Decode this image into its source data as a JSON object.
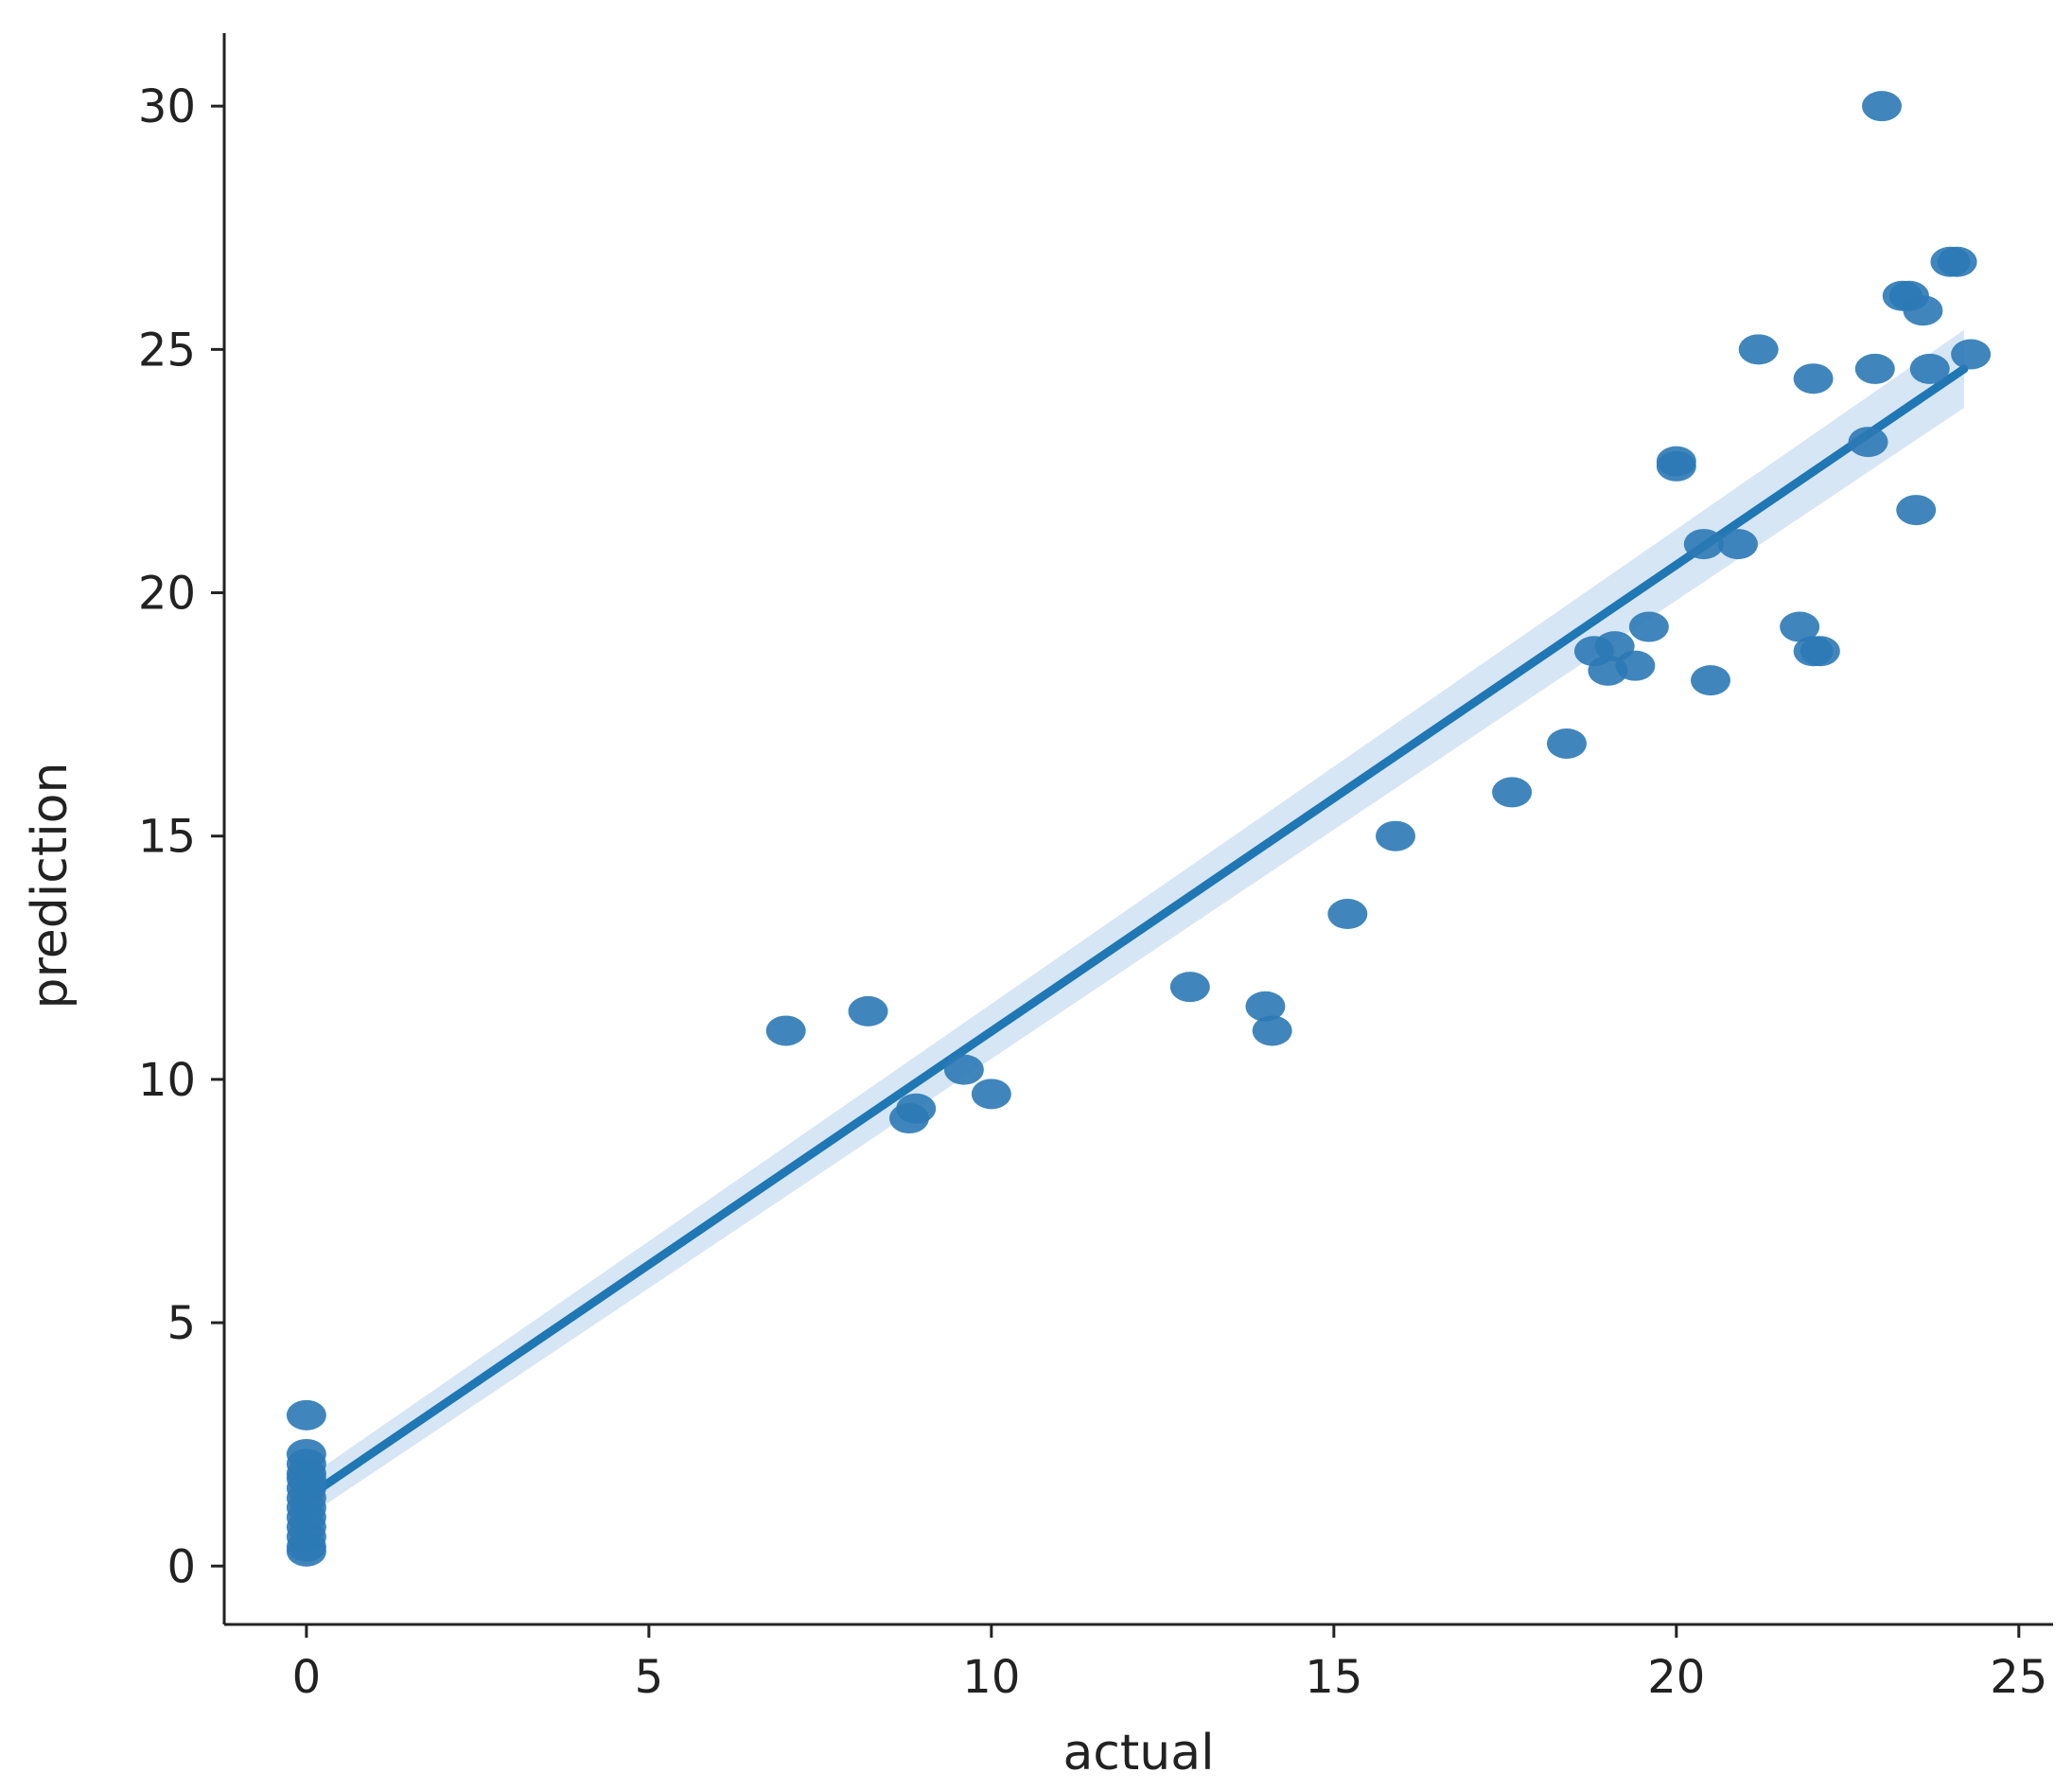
{
  "chart_data": {
    "type": "scatter",
    "title": "",
    "xlabel": "actual",
    "ylabel": "prediction",
    "xlim": [
      -1.2,
      25.5
    ],
    "ylim": [
      -1.2,
      31.5
    ],
    "xticks": [
      0,
      5,
      10,
      15,
      20,
      25
    ],
    "yticks": [
      0,
      5,
      10,
      15,
      20,
      25,
      30
    ],
    "grid": false,
    "legend": "none",
    "point_color": "#2b79b5",
    "line_color": "#1f77b4",
    "band_color": "#c6dbef",
    "points": [
      {
        "x": 0,
        "y": 3.1
      },
      {
        "x": 0,
        "y": 2.3
      },
      {
        "x": 0,
        "y": 2.1
      },
      {
        "x": 0,
        "y": 1.9
      },
      {
        "x": 0,
        "y": 1.8
      },
      {
        "x": 0,
        "y": 1.6
      },
      {
        "x": 0,
        "y": 1.4
      },
      {
        "x": 0,
        "y": 1.2
      },
      {
        "x": 0,
        "y": 1.0
      },
      {
        "x": 0,
        "y": 0.8
      },
      {
        "x": 0,
        "y": 0.6
      },
      {
        "x": 0,
        "y": 0.4
      },
      {
        "x": 0,
        "y": 0.3
      },
      {
        "x": 7.0,
        "y": 11.0
      },
      {
        "x": 8.2,
        "y": 11.4
      },
      {
        "x": 8.9,
        "y": 9.4
      },
      {
        "x": 8.8,
        "y": 9.2
      },
      {
        "x": 9.6,
        "y": 10.2
      },
      {
        "x": 10.0,
        "y": 9.7
      },
      {
        "x": 12.9,
        "y": 11.9
      },
      {
        "x": 14.0,
        "y": 11.5
      },
      {
        "x": 14.1,
        "y": 11.0
      },
      {
        "x": 15.2,
        "y": 13.4
      },
      {
        "x": 15.9,
        "y": 15.0
      },
      {
        "x": 17.6,
        "y": 15.9
      },
      {
        "x": 18.4,
        "y": 16.9
      },
      {
        "x": 18.8,
        "y": 18.8
      },
      {
        "x": 19.0,
        "y": 18.4
      },
      {
        "x": 19.1,
        "y": 18.9
      },
      {
        "x": 19.4,
        "y": 18.5
      },
      {
        "x": 19.6,
        "y": 19.3
      },
      {
        "x": 20.0,
        "y": 22.7
      },
      {
        "x": 20.0,
        "y": 22.6
      },
      {
        "x": 20.4,
        "y": 21.0
      },
      {
        "x": 20.9,
        "y": 21.0
      },
      {
        "x": 20.5,
        "y": 18.2
      },
      {
        "x": 21.2,
        "y": 25.0
      },
      {
        "x": 21.8,
        "y": 19.3
      },
      {
        "x": 22.0,
        "y": 18.8
      },
      {
        "x": 22.1,
        "y": 18.8
      },
      {
        "x": 22.0,
        "y": 24.4
      },
      {
        "x": 22.8,
        "y": 23.1
      },
      {
        "x": 22.9,
        "y": 24.6
      },
      {
        "x": 23.0,
        "y": 30.0
      },
      {
        "x": 23.3,
        "y": 26.1
      },
      {
        "x": 23.4,
        "y": 26.1
      },
      {
        "x": 23.6,
        "y": 25.8
      },
      {
        "x": 23.5,
        "y": 21.7
      },
      {
        "x": 23.7,
        "y": 24.6
      },
      {
        "x": 24.0,
        "y": 26.8
      },
      {
        "x": 24.1,
        "y": 26.8
      },
      {
        "x": 24.3,
        "y": 24.9
      }
    ],
    "regression": {
      "x": [
        0,
        24.2
      ],
      "y": [
        1.4,
        24.6
      ],
      "ci_lower": [
        1.0,
        23.8
      ],
      "ci_upper": [
        1.8,
        25.4
      ]
    }
  }
}
